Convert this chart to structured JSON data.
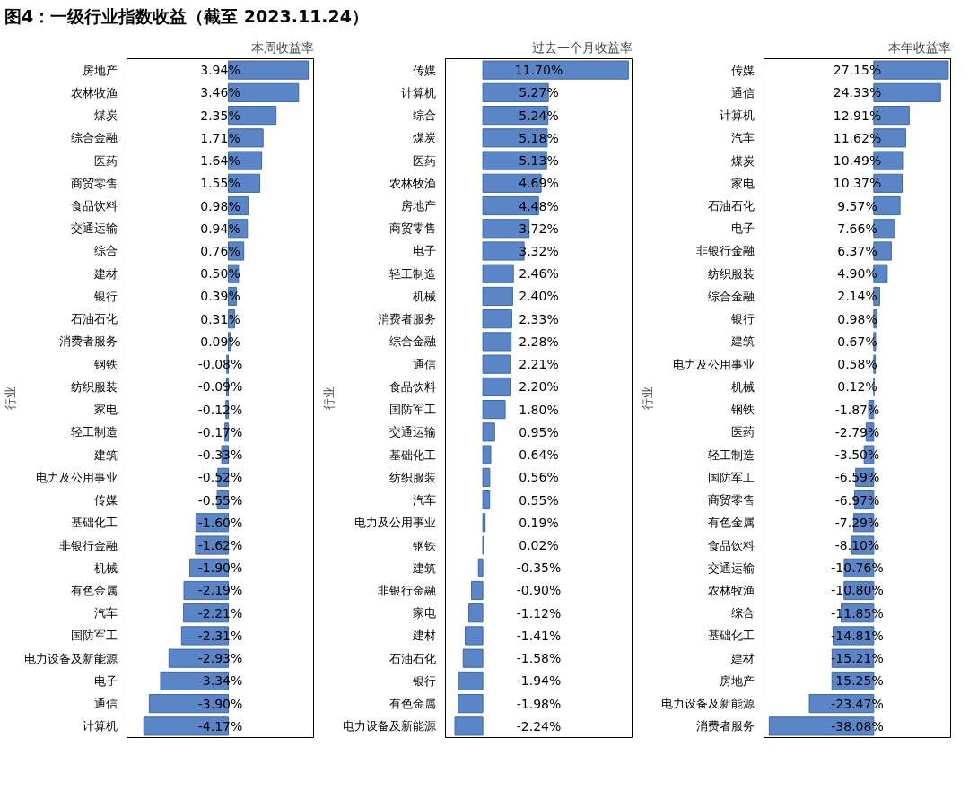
{
  "chart_data": [
    {
      "type": "bar",
      "orientation": "horizontal",
      "title": "图4：一级行业指数收益（截至 2023.11.24）",
      "ylabel": "行业",
      "subtitle": "本周收益率",
      "tick_labels": "y",
      "grid": false,
      "color": "#5a86c8",
      "xlim": [
        -5,
        4.2
      ],
      "categories": [
        "房地产",
        "农林牧渔",
        "煤炭",
        "综合金融",
        "医药",
        "商贸零售",
        "食品饮料",
        "交通运输",
        "综合",
        "建材",
        "银行",
        "石油石化",
        "消费者服务",
        "钢铁",
        "纺织服装",
        "家电",
        "轻工制造",
        "建筑",
        "电力及公用事业",
        "传媒",
        "基础化工",
        "非银行金融",
        "机械",
        "有色金属",
        "汽车",
        "国防军工",
        "电力设备及新能源",
        "电子",
        "通信",
        "计算机"
      ],
      "values": [
        3.94,
        3.46,
        2.35,
        1.71,
        1.64,
        1.55,
        0.98,
        0.94,
        0.76,
        0.5,
        0.39,
        0.31,
        0.09,
        -0.08,
        -0.09,
        -0.12,
        -0.17,
        -0.33,
        -0.52,
        -0.55,
        -1.6,
        -1.62,
        -1.9,
        -2.19,
        -2.21,
        -2.31,
        -2.93,
        -3.34,
        -3.9,
        -4.17
      ],
      "value_labels": [
        "3.94%",
        "3.46%",
        "2.35%",
        "1.71%",
        "1.64%",
        "1.55%",
        "0.98%",
        "0.94%",
        "0.76%",
        "0.50%",
        "0.39%",
        "0.31%",
        "0.09%",
        "-0.08%",
        "-0.09%",
        "-0.12%",
        "-0.17%",
        "-0.33%",
        "-0.52%",
        "-0.55%",
        "-1.60%",
        "-1.62%",
        "-1.90%",
        "-2.19%",
        "-2.21%",
        "-2.31%",
        "-2.93%",
        "-3.34%",
        "-3.90%",
        "-4.17%"
      ]
    },
    {
      "type": "bar",
      "orientation": "horizontal",
      "ylabel": "行业",
      "subtitle": "过去一个月收益率",
      "tick_labels": "y",
      "grid": false,
      "color": "#5a86c8",
      "xlim": [
        -3,
        12
      ],
      "categories": [
        "传媒",
        "计算机",
        "综合",
        "煤炭",
        "医药",
        "农林牧渔",
        "房地产",
        "商贸零售",
        "电子",
        "轻工制造",
        "机械",
        "消费者服务",
        "综合金融",
        "通信",
        "食品饮料",
        "国防军工",
        "交通运输",
        "基础化工",
        "纺织服装",
        "汽车",
        "电力及公用事业",
        "钢铁",
        "建筑",
        "非银行金融",
        "家电",
        "建材",
        "石油石化",
        "银行",
        "有色金属",
        "电力设备及新能源"
      ],
      "values": [
        11.7,
        5.27,
        5.24,
        5.18,
        5.13,
        4.69,
        4.48,
        3.72,
        3.32,
        2.46,
        2.4,
        2.33,
        2.28,
        2.21,
        2.2,
        1.8,
        0.95,
        0.64,
        0.56,
        0.55,
        0.19,
        0.02,
        -0.35,
        -0.9,
        -1.12,
        -1.41,
        -1.58,
        -1.94,
        -1.98,
        -2.24
      ],
      "value_labels": [
        "11.70%",
        "5.27%",
        "5.24%",
        "5.18%",
        "5.13%",
        "4.69%",
        "4.48%",
        "3.72%",
        "3.32%",
        "2.46%",
        "2.40%",
        "2.33%",
        "2.28%",
        "2.21%",
        "2.20%",
        "1.80%",
        "0.95%",
        "0.64%",
        "0.56%",
        "0.55%",
        "0.19%",
        "0.02%",
        "-0.35%",
        "-0.90%",
        "-1.12%",
        "-1.41%",
        "-1.58%",
        "-1.94%",
        "-1.98%",
        "-2.24%"
      ]
    },
    {
      "type": "bar",
      "orientation": "horizontal",
      "ylabel": "行业",
      "subtitle": "本年收益率",
      "tick_labels": "y",
      "grid": false,
      "color": "#5a86c8",
      "xlim": [
        -40,
        28
      ],
      "categories": [
        "传媒",
        "通信",
        "计算机",
        "汽车",
        "煤炭",
        "家电",
        "石油石化",
        "电子",
        "非银行金融",
        "纺织服装",
        "综合金融",
        "银行",
        "建筑",
        "电力及公用事业",
        "机械",
        "钢铁",
        "医药",
        "轻工制造",
        "国防军工",
        "商贸零售",
        "有色金属",
        "食品饮料",
        "交通运输",
        "农林牧渔",
        "综合",
        "基础化工",
        "建材",
        "房地产",
        "电力设备及新能源",
        "消费者服务"
      ],
      "values": [
        27.15,
        24.33,
        12.91,
        11.62,
        10.49,
        10.37,
        9.57,
        7.66,
        6.37,
        4.9,
        2.14,
        0.98,
        0.67,
        0.58,
        0.12,
        -1.87,
        -2.79,
        -3.5,
        -6.59,
        -6.97,
        -7.29,
        -8.1,
        -10.76,
        -10.8,
        -11.85,
        -14.81,
        -15.21,
        -15.25,
        -23.47,
        -38.08
      ],
      "value_labels": [
        "27.15%",
        "24.33%",
        "12.91%",
        "11.62%",
        "10.49%",
        "10.37%",
        "9.57%",
        "7.66%",
        "6.37%",
        "4.90%",
        "2.14%",
        "0.98%",
        "0.67%",
        "0.58%",
        "0.12%",
        "-1.87%",
        "-2.79%",
        "-3.50%",
        "-6.59%",
        "-6.97%",
        "-7.29%",
        "-8.10%",
        "-10.76%",
        "-10.80%",
        "-11.85%",
        "-14.81%",
        "-15.21%",
        "-15.25%",
        "-23.47%",
        "-38.08%"
      ]
    }
  ]
}
